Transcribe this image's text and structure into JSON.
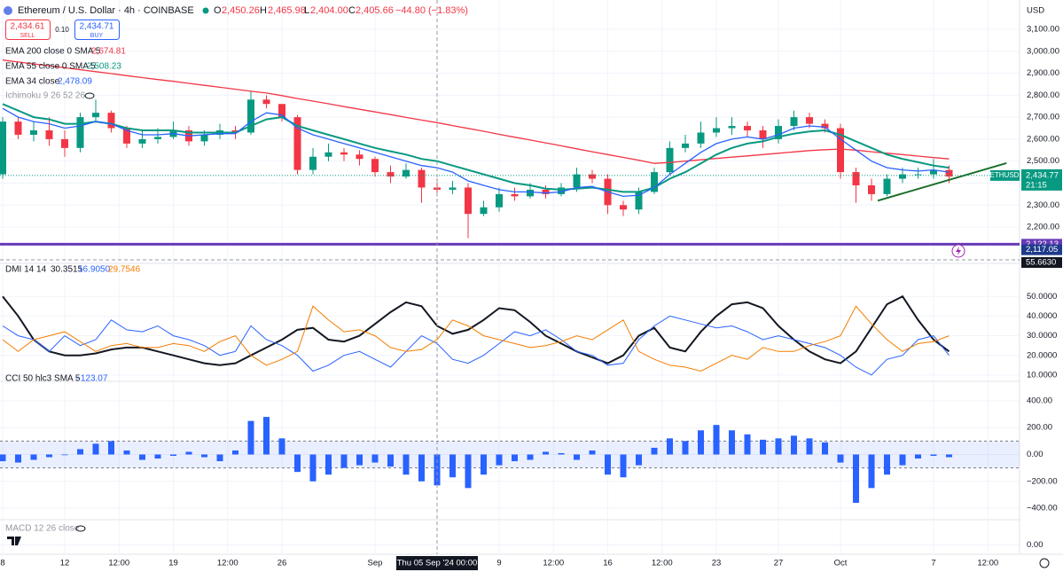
{
  "header": {
    "symbol": "Ethereum / U.S. Dollar · 4h · COINBASE",
    "ohlc": [
      {
        "key": "O",
        "value": "2,450.26"
      },
      {
        "key": "H",
        "value": "2,465.98"
      },
      {
        "key": "L",
        "value": "2,404.00"
      },
      {
        "key": "C",
        "value": "2,405.66"
      }
    ],
    "change": "−44.80 (−1.83%)",
    "sell": {
      "price": "2,434.61",
      "label": "SELL"
    },
    "spread": "0.10",
    "buy": {
      "price": "2,434.71",
      "label": "BUY"
    },
    "currency": "USD"
  },
  "x_axis": {
    "ticks": [
      {
        "value": 0,
        "label": "8"
      },
      {
        "value": 4,
        "label": "12"
      },
      {
        "value": 7.5,
        "label": "12:00"
      },
      {
        "value": 11,
        "label": "19"
      },
      {
        "value": 14.5,
        "label": "12:00"
      },
      {
        "value": 18,
        "label": "26"
      },
      {
        "value": 24,
        "label": "Sep"
      },
      {
        "value": 32,
        "label": "9"
      },
      {
        "value": 35.5,
        "label": "12:00"
      },
      {
        "value": 39,
        "label": "16"
      },
      {
        "value": 42.5,
        "label": "12:00"
      },
      {
        "value": 46,
        "label": "23"
      },
      {
        "value": 50,
        "label": "27"
      },
      {
        "value": 54,
        "label": "Oct"
      },
      {
        "value": 60,
        "label": "7"
      },
      {
        "value": 63.5,
        "label": "12:00"
      }
    ],
    "crosshair": {
      "value": 28,
      "label": "Thu 05 Sep '24 00:00"
    }
  },
  "chart_data": [
    {
      "type": "candlestick",
      "up_color": "#089981",
      "down_color": "#f23645",
      "open": [
        2440,
        2680,
        2620,
        2640,
        2600,
        2560,
        2700,
        2720,
        2650,
        2580,
        2600,
        2610,
        2640,
        2590,
        2620,
        2640,
        2630,
        2780,
        2760,
        2700,
        2460,
        2520,
        2540,
        2530,
        2510,
        2450,
        2430,
        2460,
        2380,
        2370,
        2380,
        2260,
        2290,
        2350,
        2340,
        2370,
        2350,
        2380,
        2440,
        2420,
        2300,
        2280,
        2360,
        2450,
        2560,
        2580,
        2630,
        2650,
        2660,
        2640,
        2600,
        2660,
        2700,
        2670,
        2650,
        2450,
        2390,
        2350,
        2420,
        2440,
        2440,
        2460
      ],
      "high": [
        2700,
        2700,
        2680,
        2700,
        2640,
        2720,
        2780,
        2730,
        2660,
        2640,
        2650,
        2680,
        2660,
        2640,
        2670,
        2660,
        2820,
        2800,
        2760,
        2710,
        2560,
        2580,
        2560,
        2550,
        2520,
        2480,
        2490,
        2470,
        2420,
        2410,
        2400,
        2320,
        2380,
        2380,
        2400,
        2390,
        2400,
        2470,
        2460,
        2440,
        2320,
        2380,
        2470,
        2590,
        2620,
        2680,
        2700,
        2700,
        2680,
        2660,
        2690,
        2730,
        2720,
        2690,
        2670,
        2470,
        2420,
        2440,
        2470,
        2470,
        2510,
        2480
      ],
      "low": [
        2420,
        2600,
        2590,
        2570,
        2520,
        2540,
        2680,
        2630,
        2560,
        2560,
        2580,
        2600,
        2570,
        2570,
        2600,
        2600,
        2620,
        2740,
        2680,
        2440,
        2440,
        2500,
        2500,
        2480,
        2430,
        2400,
        2420,
        2310,
        2340,
        2350,
        2150,
        2250,
        2270,
        2320,
        2330,
        2330,
        2340,
        2360,
        2400,
        2260,
        2250,
        2260,
        2350,
        2440,
        2540,
        2560,
        2610,
        2620,
        2610,
        2560,
        2580,
        2640,
        2650,
        2630,
        2420,
        2310,
        2320,
        2340,
        2400,
        2420,
        2420,
        2400
      ],
      "close": [
        2680,
        2620,
        2640,
        2600,
        2560,
        2700,
        2720,
        2650,
        2580,
        2600,
        2610,
        2640,
        2590,
        2620,
        2640,
        2630,
        2780,
        2760,
        2700,
        2460,
        2520,
        2540,
        2530,
        2510,
        2450,
        2430,
        2460,
        2380,
        2370,
        2380,
        2260,
        2290,
        2350,
        2340,
        2370,
        2350,
        2380,
        2440,
        2420,
        2300,
        2280,
        2360,
        2450,
        2560,
        2580,
        2630,
        2650,
        2660,
        2640,
        2600,
        2660,
        2700,
        2670,
        2650,
        2450,
        2390,
        2350,
        2420,
        2440,
        2440,
        2460,
        2430
      ],
      "ylim": [
        2043,
        3233
      ],
      "yticks": [
        {
          "value": 2200,
          "label": "2,200.00"
        },
        {
          "value": 2300,
          "label": "2,300.00"
        },
        {
          "value": 2400,
          "label": "2,400.00"
        },
        {
          "value": 2500,
          "label": "2,500.00"
        },
        {
          "value": 2600,
          "label": "2,600.00"
        },
        {
          "value": 2700,
          "label": "2,700.00"
        },
        {
          "value": 2800,
          "label": "2,800.00"
        },
        {
          "value": 2900,
          "label": "2,900.00"
        },
        {
          "value": 3000,
          "label": "3,000.00"
        },
        {
          "value": 3100,
          "label": "3,100.00"
        }
      ],
      "series": [
        {
          "name": "EMA 200 close 0 SMA 5",
          "legend_value": "2,674.81",
          "color": "#f23645",
          "values": [
            2960,
            2951,
            2942,
            2934,
            2925,
            2916,
            2907,
            2898,
            2889,
            2880,
            2871,
            2863,
            2854,
            2845,
            2836,
            2827,
            2818,
            2810,
            2798,
            2785,
            2773,
            2761,
            2748,
            2736,
            2724,
            2712,
            2699,
            2687,
            2675,
            2662,
            2649,
            2636,
            2622,
            2609,
            2596,
            2583,
            2570,
            2556,
            2543,
            2530,
            2517,
            2504,
            2490,
            2494,
            2500,
            2506,
            2512,
            2518,
            2524,
            2530,
            2536,
            2542,
            2548,
            2552,
            2555,
            2550,
            2543,
            2536,
            2530,
            2523,
            2516,
            2510
          ]
        },
        {
          "name": "EMA 55 close 0 SMA 5",
          "legend_value": "2,508.23",
          "color": "#089981",
          "values": [
            2760,
            2730,
            2700,
            2690,
            2670,
            2670,
            2680,
            2670,
            2650,
            2640,
            2640,
            2640,
            2630,
            2630,
            2630,
            2630,
            2660,
            2690,
            2700,
            2660,
            2640,
            2620,
            2600,
            2580,
            2560,
            2545,
            2530,
            2510,
            2500,
            2480,
            2460,
            2440,
            2420,
            2400,
            2390,
            2375,
            2370,
            2375,
            2380,
            2370,
            2360,
            2360,
            2380,
            2420,
            2450,
            2490,
            2530,
            2560,
            2580,
            2590,
            2610,
            2625,
            2635,
            2640,
            2620,
            2590,
            2560,
            2530,
            2510,
            2495,
            2480,
            2470
          ]
        },
        {
          "name": "EMA 34 close",
          "legend_value": "2,478.09",
          "color": "#2962ff",
          "values": [
            2740,
            2700,
            2680,
            2670,
            2650,
            2660,
            2680,
            2670,
            2640,
            2620,
            2620,
            2625,
            2615,
            2620,
            2625,
            2625,
            2680,
            2720,
            2710,
            2650,
            2620,
            2600,
            2580,
            2560,
            2540,
            2520,
            2500,
            2480,
            2470,
            2450,
            2410,
            2390,
            2370,
            2360,
            2360,
            2355,
            2360,
            2380,
            2385,
            2360,
            2340,
            2345,
            2380,
            2440,
            2490,
            2540,
            2580,
            2600,
            2610,
            2600,
            2620,
            2650,
            2660,
            2655,
            2600,
            2550,
            2500,
            2470,
            2460,
            2455,
            2460,
            2450
          ]
        }
      ],
      "indicators": [
        "Ichimoku 9 26 52 26"
      ],
      "last_price": {
        "symbol": "ETHUSD",
        "value": 2434.77,
        "label": "2,434.77",
        "countdown": "21:15",
        "color": "#089981"
      },
      "levels": [
        {
          "value": 2122.13,
          "label": "2,122.13",
          "color": "#673ab7"
        }
      ],
      "price_tags": [
        {
          "value": 2117.05,
          "label": "2,117.05",
          "color": "#1e3a8a"
        }
      ],
      "trendline": {
        "x": [
          56.4,
          64.7
        ],
        "y": [
          2320,
          2491
        ],
        "color": "#1b6e2c"
      }
    },
    {
      "type": "line",
      "title": "DMI 14 14",
      "ylim": [
        6.8,
        66.8
      ],
      "yticks": [
        {
          "value": 10,
          "label": "10.0000"
        },
        {
          "value": 20,
          "label": "20.0000"
        },
        {
          "value": 30,
          "label": "30.0000"
        },
        {
          "value": 40,
          "label": "40.0000"
        },
        {
          "value": 50,
          "label": "50.0000"
        }
      ],
      "crosshair_label": "55.6630",
      "series": [
        {
          "legend_value": "30.3515",
          "color": "#131722",
          "values": [
            50,
            40,
            28,
            22,
            20,
            20,
            21,
            23,
            24,
            24,
            22,
            20,
            18,
            16,
            15,
            16,
            20,
            24,
            28,
            33,
            34,
            28,
            27,
            30,
            36,
            42,
            47,
            45,
            35,
            31,
            33,
            38,
            44,
            43,
            37,
            30,
            26,
            22,
            19,
            16,
            20,
            30,
            34,
            24,
            22,
            32,
            40,
            46,
            47,
            44,
            35,
            28,
            22,
            18,
            16,
            22,
            34,
            46,
            50,
            38,
            28,
            22
          ]
        },
        {
          "legend_value": "16.9050",
          "color": "#2962ff",
          "values": [
            35,
            30,
            28,
            22,
            30,
            25,
            28,
            38,
            33,
            32,
            35,
            30,
            28,
            25,
            20,
            22,
            35,
            28,
            25,
            20,
            12,
            15,
            20,
            22,
            18,
            14,
            22,
            30,
            26,
            18,
            16,
            20,
            26,
            32,
            30,
            33,
            28,
            22,
            20,
            15,
            16,
            28,
            35,
            40,
            38,
            36,
            34,
            35,
            32,
            28,
            30,
            28,
            26,
            24,
            20,
            14,
            10,
            18,
            20,
            28,
            30,
            20
          ]
        },
        {
          "legend_value": "29.7546",
          "color": "#f57c00",
          "values": [
            28,
            22,
            28,
            30,
            32,
            27,
            22,
            25,
            26,
            24,
            24,
            26,
            25,
            22,
            27,
            30,
            20,
            15,
            18,
            22,
            45,
            38,
            32,
            33,
            30,
            24,
            22,
            23,
            28,
            38,
            35,
            30,
            28,
            26,
            24,
            25,
            27,
            30,
            28,
            33,
            38,
            22,
            18,
            15,
            14,
            12,
            16,
            20,
            18,
            24,
            22,
            22,
            25,
            27,
            30,
            45,
            36,
            28,
            22,
            26,
            27,
            30
          ]
        }
      ]
    },
    {
      "type": "bar",
      "title": "CCI 50 hlc3 SMA 5",
      "legend_value": "−123.07",
      "color": "#2962ff",
      "band": [
        -100,
        100
      ],
      "ylim": [
        -479,
        545
      ],
      "yticks": [
        {
          "value": -400,
          "label": "−400.00"
        },
        {
          "value": -200,
          "label": "−200.00"
        },
        {
          "value": 0,
          "label": "0.00"
        },
        {
          "value": 200,
          "label": "200.00"
        },
        {
          "value": 400,
          "label": "400.00"
        }
      ],
      "values": [
        -50,
        -60,
        -40,
        -20,
        -5,
        40,
        80,
        100,
        30,
        -40,
        -30,
        -10,
        20,
        -20,
        -50,
        30,
        250,
        280,
        120,
        -130,
        -200,
        -150,
        -100,
        -80,
        -60,
        -90,
        -150,
        -200,
        -230,
        -170,
        -250,
        -150,
        -80,
        -50,
        -40,
        20,
        10,
        -40,
        30,
        -150,
        -170,
        -80,
        50,
        120,
        100,
        180,
        220,
        180,
        150,
        110,
        120,
        140,
        120,
        90,
        -60,
        -360,
        -250,
        -150,
        -80,
        -30,
        -10,
        -20
      ]
    },
    {
      "type": "line",
      "title": "MACD 12 26 close",
      "ylim": [
        -1,
        2.7
      ],
      "yticks": [
        {
          "value": 0,
          "label": "0.00"
        }
      ]
    }
  ]
}
